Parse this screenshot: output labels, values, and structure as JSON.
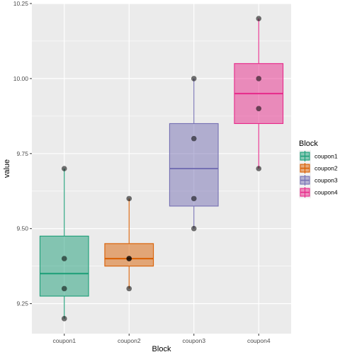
{
  "chart_data": {
    "type": "box",
    "xlabel": "Block",
    "ylabel": "value",
    "categories": [
      "coupon1",
      "coupon2",
      "coupon3",
      "coupon4"
    ],
    "ylim": [
      9.15,
      10.25
    ],
    "yticks": [
      9.25,
      9.5,
      9.75,
      10.0,
      10.25
    ],
    "ytick_labels": [
      "9.25",
      "9.50",
      "9.75",
      "10.00",
      "10.25"
    ],
    "grid": true,
    "legend": {
      "title": "Block",
      "position": "right",
      "entries": [
        "coupon1",
        "coupon2",
        "coupon3",
        "coupon4"
      ]
    },
    "colors": [
      "#1b9e77",
      "#d95f02",
      "#7570b3",
      "#e7298a"
    ],
    "boxes": [
      {
        "category": "coupon1",
        "lower_whisker": 9.2,
        "q1": 9.275,
        "median": 9.35,
        "q3": 9.475,
        "upper_whisker": 9.7
      },
      {
        "category": "coupon2",
        "lower_whisker": 9.3,
        "q1": 9.375,
        "median": 9.4,
        "q3": 9.45,
        "upper_whisker": 9.6
      },
      {
        "category": "coupon3",
        "lower_whisker": 9.5,
        "q1": 9.575,
        "median": 9.7,
        "q3": 9.85,
        "upper_whisker": 10.0
      },
      {
        "category": "coupon4",
        "lower_whisker": 9.7,
        "q1": 9.85,
        "median": 9.95,
        "q3": 10.05,
        "upper_whisker": 10.2
      }
    ],
    "points": [
      {
        "category": "coupon1",
        "values": [
          9.7,
          9.4,
          9.3,
          9.2
        ]
      },
      {
        "category": "coupon2",
        "values": [
          9.6,
          9.4,
          9.4,
          9.3
        ]
      },
      {
        "category": "coupon3",
        "values": [
          10.0,
          9.8,
          9.6,
          9.5
        ]
      },
      {
        "category": "coupon4",
        "values": [
          10.2,
          10.0,
          9.9,
          9.7
        ]
      }
    ]
  }
}
